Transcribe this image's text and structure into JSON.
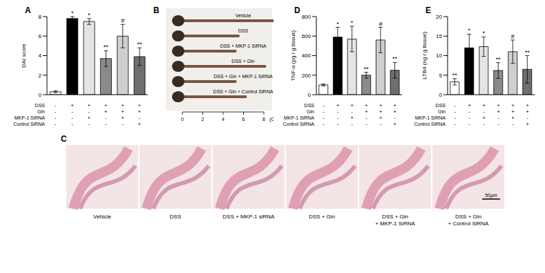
{
  "chart_data": [
    {
      "type": "bar",
      "title": "A",
      "y_label": "DAI score",
      "categories": [
        null,
        null,
        null,
        null,
        null,
        null
      ],
      "values": [
        0.3,
        7.8,
        7.5,
        3.7,
        6.0,
        3.9
      ],
      "errors": [
        0.1,
        0.2,
        0.3,
        0.8,
        1.2,
        0.9
      ],
      "significance": [
        null,
        "*",
        "*",
        "**",
        "#",
        "**"
      ],
      "colors": [
        "#ffffff",
        "#000000",
        "#e4e4e4",
        "#8a8a8a",
        "#cfcfcf",
        "#6e6e6e"
      ],
      "ylim": [
        0,
        8
      ],
      "yticks": [
        0,
        2,
        4,
        6,
        8
      ],
      "conditions": [
        {
          "name": "DSS",
          "signs": [
            "-",
            "+",
            "+",
            "+",
            "+",
            "+"
          ]
        },
        {
          "name": "Gln",
          "signs": [
            "-",
            "-",
            "-",
            "+",
            "+",
            "+"
          ]
        },
        {
          "name": "MKP-1 SiRNA",
          "signs": [
            "-",
            "-",
            "+",
            "-",
            "+",
            "-"
          ]
        },
        {
          "name": "Control SiRNA",
          "signs": [
            "-",
            "-",
            "-",
            "-",
            "-",
            "+"
          ]
        }
      ]
    },
    {
      "type": "bar",
      "title": "D",
      "y_label": "TNF-α (pg / g tissue)",
      "categories": [
        null,
        null,
        null,
        null,
        null,
        null
      ],
      "values": [
        100,
        590,
        570,
        200,
        560,
        250
      ],
      "errors": [
        10,
        100,
        130,
        30,
        130,
        80
      ],
      "significance": [
        null,
        "*",
        "*",
        "**",
        "#",
        "**"
      ],
      "colors": [
        "#ffffff",
        "#000000",
        "#e4e4e4",
        "#8a8a8a",
        "#cfcfcf",
        "#6e6e6e"
      ],
      "ylim": [
        0,
        800
      ],
      "yticks": [
        0,
        200,
        400,
        600,
        800
      ],
      "conditions": [
        {
          "name": "DSS",
          "signs": [
            "-",
            "+",
            "+",
            "+",
            "+",
            "+"
          ]
        },
        {
          "name": "Gln",
          "signs": [
            "-",
            "-",
            "-",
            "+",
            "+",
            "+"
          ]
        },
        {
          "name": "MKP-1 SiRNA",
          "signs": [
            "-",
            "-",
            "+",
            "-",
            "+",
            "-"
          ]
        },
        {
          "name": "Control SiRNA",
          "signs": [
            "-",
            "-",
            "-",
            "-",
            "-",
            "+"
          ]
        }
      ]
    },
    {
      "type": "bar",
      "title": "E",
      "y_label": "LTB4 (ng / g tissue)",
      "categories": [
        null,
        null,
        null,
        null,
        null,
        null
      ],
      "values": [
        3.3,
        12,
        12.3,
        6.2,
        11,
        6.5
      ],
      "errors": [
        0.8,
        3.5,
        2.5,
        2,
        3,
        3.5
      ],
      "significance": [
        "**",
        "*",
        "*",
        "**",
        "#",
        "**"
      ],
      "colors": [
        "#ffffff",
        "#000000",
        "#e4e4e4",
        "#8a8a8a",
        "#cfcfcf",
        "#6e6e6e"
      ],
      "ylim": [
        0,
        20
      ],
      "yticks": [
        0,
        5,
        10,
        15,
        20
      ],
      "conditions": [
        {
          "name": "DSS",
          "signs": [
            "-",
            "+",
            "+",
            "+",
            "+",
            "+"
          ]
        },
        {
          "name": "Gln",
          "signs": [
            "-",
            "-",
            "-",
            "+",
            "+",
            "+"
          ]
        },
        {
          "name": "MKP-1 SiRNA",
          "signs": [
            "-",
            "-",
            "+",
            "-",
            "+",
            "-"
          ]
        },
        {
          "name": "Control SiRNA",
          "signs": [
            "-",
            "-",
            "-",
            "-",
            "-",
            "+"
          ]
        }
      ]
    }
  ],
  "photo_panel": {
    "title": "B",
    "groups": [
      "Vehicle",
      "DSS",
      "DSS + MKP-1 SiRNA",
      "DSS + Gln",
      "DSS + Gln + MKP-1 SiRNA",
      "DSS + Gln + Control SiRNA"
    ],
    "lengths_cm": [
      9.4,
      5.5,
      5.2,
      8.1,
      5.2,
      6.2
    ],
    "ruler_ticks": [
      0,
      2,
      4,
      6,
      8
    ],
    "ruler_unit": "(Cm)"
  },
  "histology_panel": {
    "title": "C",
    "groups": [
      [
        "Vehicle"
      ],
      [
        "DSS"
      ],
      [
        "DSS + MKP-1 siRNA"
      ],
      [
        "DSS + Gln"
      ],
      [
        "DSS + Gln",
        "+ MKP-1 SiRNA"
      ],
      [
        "DSS + Gln",
        "+ Control SiRNA"
      ]
    ],
    "scale_bar": "50μm"
  }
}
